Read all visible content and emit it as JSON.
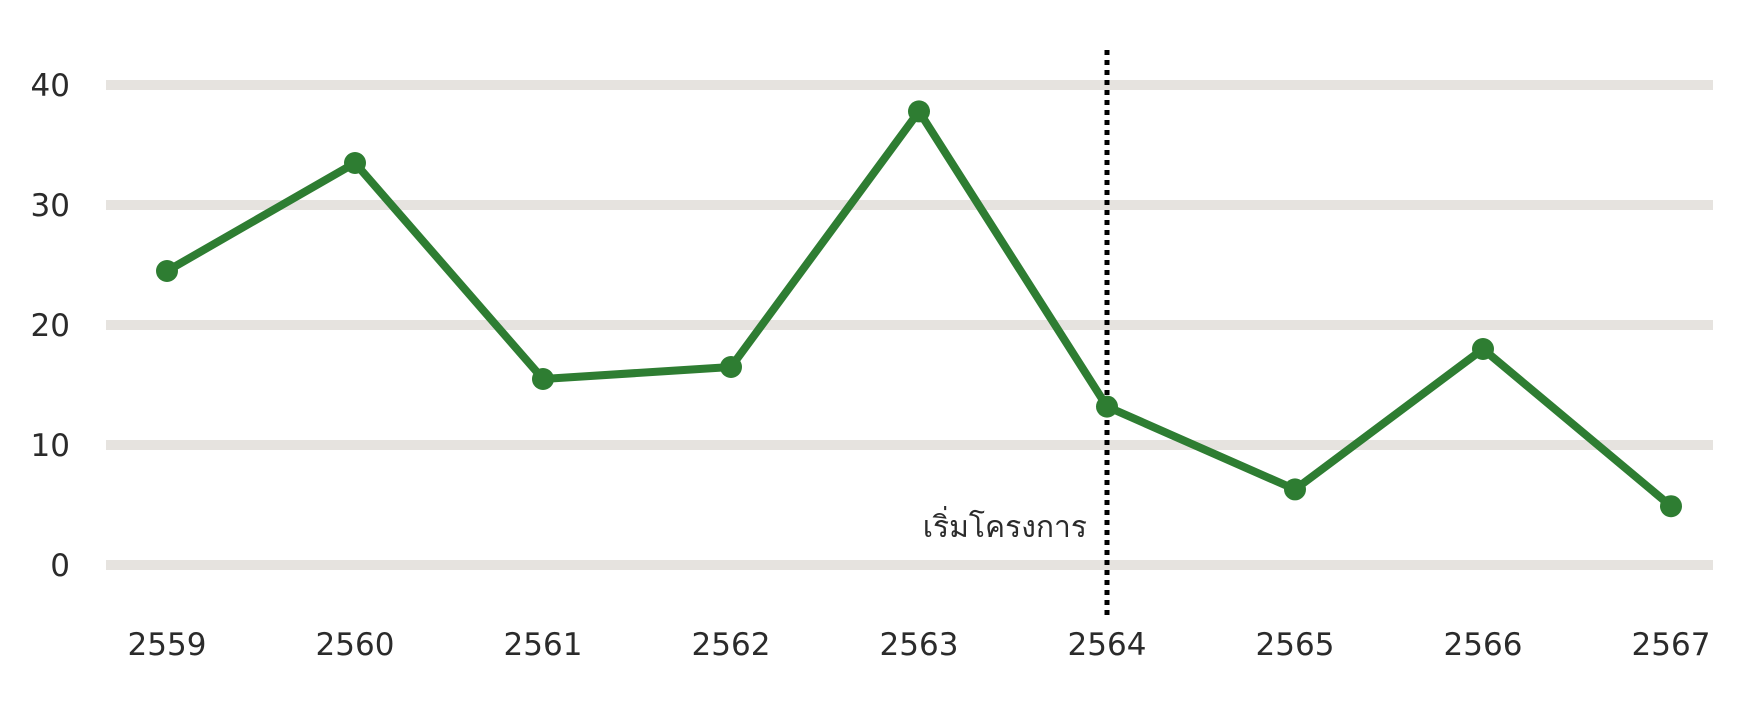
{
  "chart_data": {
    "type": "line",
    "title": "",
    "xlabel": "",
    "ylabel": "",
    "categories": [
      "2559",
      "2560",
      "2561",
      "2562",
      "2563",
      "2564",
      "2565",
      "2566",
      "2567"
    ],
    "series": [
      {
        "values": [
          24.5,
          33.5,
          15.5,
          16.5,
          37.8,
          13.2,
          6.3,
          18,
          4.9
        ]
      }
    ],
    "yticks": [
      "0",
      "10",
      "20",
      "30",
      "40"
    ],
    "ylim": [
      0,
      40
    ],
    "grid": true,
    "legend": "none",
    "annotation": {
      "label": "เริ่มโครงการ",
      "at": "2564",
      "style": "dotted vertical line"
    },
    "colors": {
      "line": "#2e7d32",
      "grid": "#e6e3df",
      "marker_line": "#000000",
      "text": "#2b2b2b"
    }
  }
}
